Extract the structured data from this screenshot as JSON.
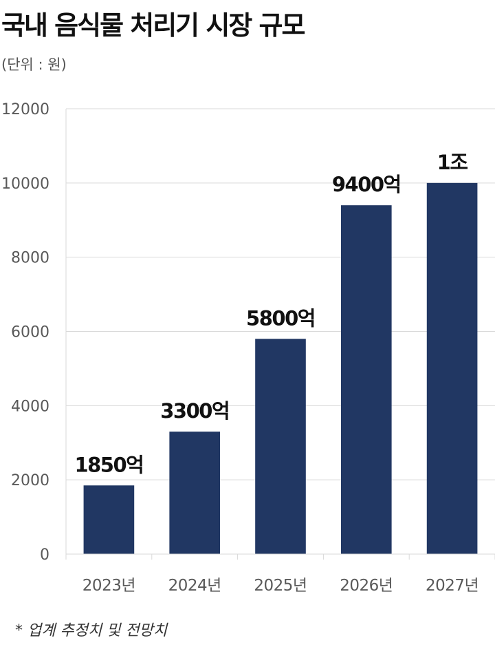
{
  "title": "국내 음식물 처리기 시장 규모",
  "subtitle": "(단위 : 원)",
  "footnote": "* 업계 추정치 및 전망치",
  "colors": {
    "bar": "#213763",
    "grid": "#d9d9d9",
    "tick": "#595959",
    "label": "#111111"
  },
  "chart_data": {
    "type": "bar",
    "categories": [
      "2023년",
      "2024년",
      "2025년",
      "2026년",
      "2027년"
    ],
    "values": [
      1850,
      3300,
      5800,
      9400,
      10000
    ],
    "data_labels": [
      "1850억",
      "3300억",
      "5800억",
      "9400억",
      "1조"
    ],
    "ylim": [
      0,
      12000
    ],
    "yticks": [
      "0",
      "2000",
      "4000",
      "6000",
      "8000",
      "10000",
      "12000"
    ],
    "grid": true,
    "legend": "none"
  }
}
